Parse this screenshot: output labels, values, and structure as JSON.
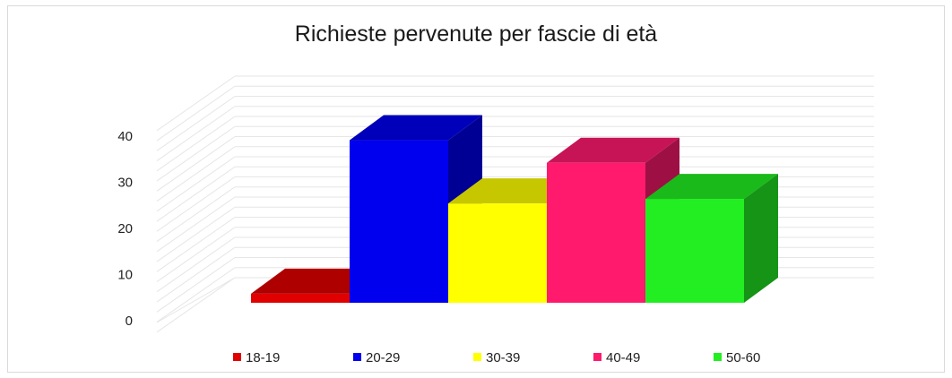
{
  "chart_data": {
    "type": "bar",
    "title": "Richieste pervenute per fascie di età",
    "categories": [
      "18-19",
      "20-29",
      "30-39",
      "40-49",
      "50-60"
    ],
    "values": [
      2,
      36,
      22,
      31,
      23
    ],
    "colors": [
      "#e00000",
      "#0000ee",
      "#ffff00",
      "#ff1a6e",
      "#22ee22"
    ],
    "yticks": [
      0,
      10,
      20,
      30,
      40
    ],
    "ylim": [
      0,
      50
    ],
    "xlabel": "",
    "ylabel": "",
    "grid": true,
    "legend_position": "bottom",
    "style": "3d-column"
  }
}
